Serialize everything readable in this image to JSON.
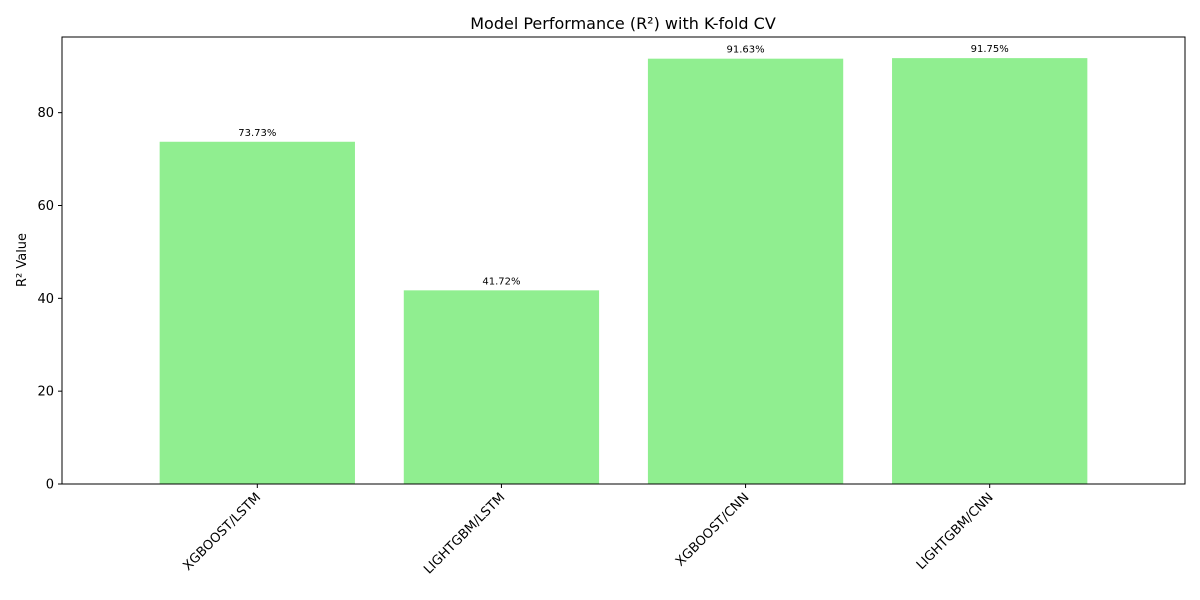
{
  "chart_data": {
    "type": "bar",
    "title": "Model Performance (R²) with K-fold CV",
    "xlabel": "",
    "ylabel": "R² Value",
    "categories": [
      "XGBOOST/LSTM",
      "LIGHTGBM/LSTM",
      "XGBOOST/CNN",
      "LIGHTGBM/CNN"
    ],
    "values": [
      73.73,
      41.72,
      91.63,
      91.75
    ],
    "value_labels": [
      "73.73%",
      "41.72%",
      "91.63%",
      "91.75%"
    ],
    "ylim": [
      0,
      96.3
    ],
    "yticks": [
      0,
      20,
      40,
      60,
      80
    ],
    "ytick_labels": [
      "0",
      "20",
      "40",
      "60",
      "80"
    ],
    "bar_color": "#90ee90",
    "grid": false,
    "legend": "none"
  }
}
